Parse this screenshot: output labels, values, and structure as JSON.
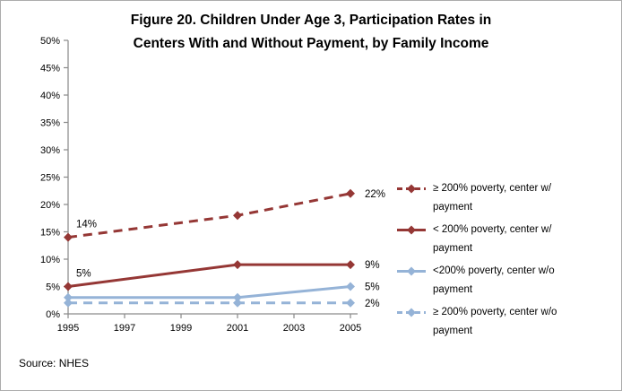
{
  "figure": {
    "source": "Source: NHES"
  },
  "chart_data": {
    "type": "line",
    "title": "Figure 20. Children Under Age 3, Participation Rates in Centers With and Without Payment, by Family Income",
    "title_lines": [
      "Figure 20. Children Under Age 3, Participation Rates in",
      "Centers With and Without Payment, by Family Income"
    ],
    "x": [
      1995,
      2001,
      2005
    ],
    "x_ticks": [
      1995,
      1997,
      1999,
      2001,
      2003,
      2005
    ],
    "xlim": [
      1995,
      2005
    ],
    "y_ticks": [
      0,
      5,
      10,
      15,
      20,
      25,
      30,
      35,
      40,
      45,
      50
    ],
    "ylim": [
      0,
      50
    ],
    "y_unit": "%",
    "grid": false,
    "legend_position": "right",
    "colors": {
      "dark_red": "#953735",
      "light_blue": "#95B3D7",
      "axis": "#8c8c8c"
    },
    "series": [
      {
        "name": "≥ 200% poverty, center w/ payment",
        "color": "#953735",
        "line_style": "dashed",
        "marker": "diamond",
        "values": [
          14,
          18,
          22
        ],
        "point_labels": [
          {
            "x": 1995,
            "value": 14,
            "text": "14%",
            "placement": "above-left"
          },
          {
            "x": 2005,
            "value": 22,
            "text": "22%",
            "placement": "right"
          }
        ]
      },
      {
        "name": "< 200% poverty, center w/ payment",
        "color": "#953735",
        "line_style": "solid",
        "marker": "diamond",
        "values": [
          5,
          9,
          9
        ],
        "point_labels": [
          {
            "x": 1995,
            "value": 5,
            "text": "5%",
            "placement": "above-left"
          },
          {
            "x": 2005,
            "value": 9,
            "text": "9%",
            "placement": "right"
          }
        ]
      },
      {
        "name": "<200% poverty, center w/o payment",
        "color": "#95B3D7",
        "line_style": "solid",
        "marker": "diamond",
        "values": [
          3,
          3,
          5
        ],
        "point_labels": [
          {
            "x": 2005,
            "value": 5,
            "text": "5%",
            "placement": "right"
          }
        ]
      },
      {
        "name": "≥ 200% poverty, center w/o payment",
        "color": "#95B3D7",
        "line_style": "dashed",
        "marker": "diamond",
        "values": [
          2,
          2,
          2
        ],
        "point_labels": [
          {
            "x": 2005,
            "value": 2,
            "text": "2%",
            "placement": "right"
          }
        ]
      }
    ]
  }
}
